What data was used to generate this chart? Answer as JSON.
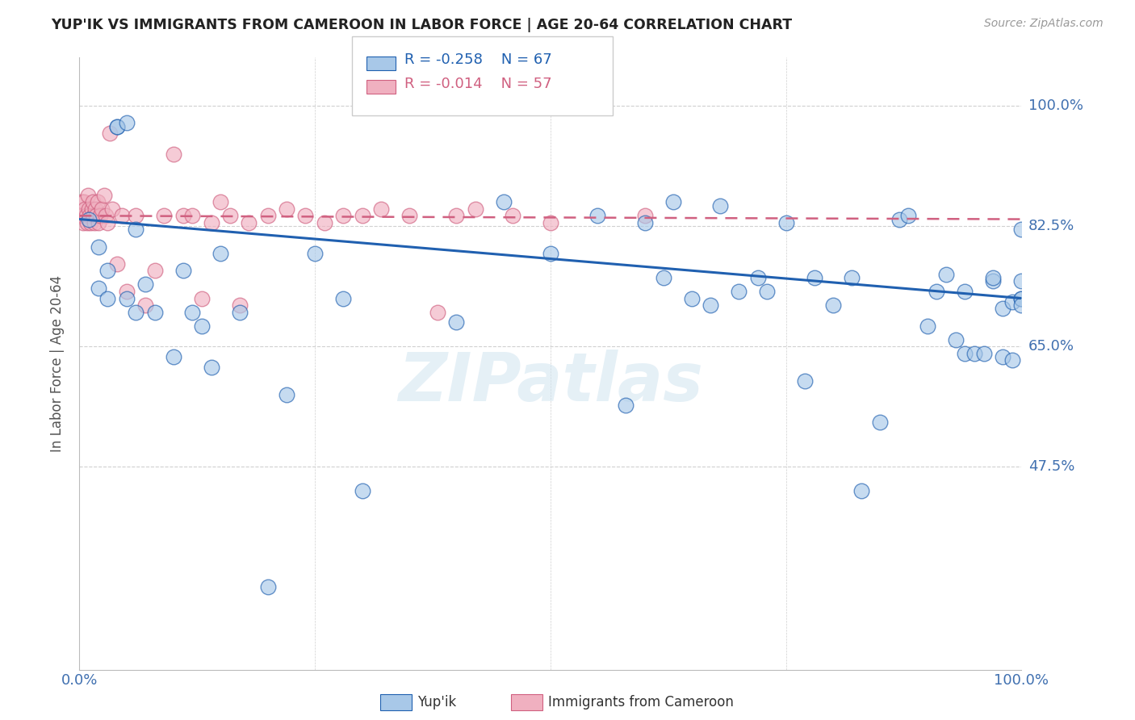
{
  "title": "YUP'IK VS IMMIGRANTS FROM CAMEROON IN LABOR FORCE | AGE 20-64 CORRELATION CHART",
  "source": "Source: ZipAtlas.com",
  "ylabel": "In Labor Force | Age 20-64",
  "ytick_labels": [
    "100.0%",
    "82.5%",
    "65.0%",
    "47.5%"
  ],
  "ytick_values": [
    1.0,
    0.825,
    0.65,
    0.475
  ],
  "xlim": [
    0.0,
    1.0
  ],
  "ylim": [
    0.18,
    1.07
  ],
  "legend_r1": "R = -0.258",
  "legend_n1": "N = 67",
  "legend_r2": "R = -0.014",
  "legend_n2": "N = 57",
  "blue_color": "#a8c8e8",
  "pink_color": "#f0b0c0",
  "line_blue": "#2060b0",
  "line_pink": "#d06080",
  "watermark": "ZIPatlas",
  "blue_scatter_x": [
    0.01,
    0.02,
    0.02,
    0.03,
    0.03,
    0.04,
    0.04,
    0.05,
    0.05,
    0.06,
    0.06,
    0.07,
    0.08,
    0.1,
    0.11,
    0.12,
    0.13,
    0.14,
    0.15,
    0.17,
    0.2,
    0.22,
    0.25,
    0.28,
    0.3,
    0.4,
    0.45,
    0.5,
    0.55,
    0.58,
    0.6,
    0.62,
    0.63,
    0.65,
    0.67,
    0.68,
    0.7,
    0.72,
    0.73,
    0.75,
    0.77,
    0.78,
    0.8,
    0.82,
    0.83,
    0.85,
    0.87,
    0.88,
    0.9,
    0.91,
    0.92,
    0.93,
    0.94,
    0.94,
    0.95,
    0.96,
    0.97,
    0.97,
    0.98,
    0.98,
    0.99,
    0.99,
    1.0,
    1.0,
    1.0,
    1.0,
    1.0
  ],
  "blue_scatter_y": [
    0.835,
    0.795,
    0.735,
    0.76,
    0.72,
    0.97,
    0.97,
    0.975,
    0.72,
    0.82,
    0.7,
    0.74,
    0.7,
    0.635,
    0.76,
    0.7,
    0.68,
    0.62,
    0.785,
    0.7,
    0.3,
    0.58,
    0.785,
    0.72,
    0.44,
    0.685,
    0.86,
    0.785,
    0.84,
    0.565,
    0.83,
    0.75,
    0.86,
    0.72,
    0.71,
    0.855,
    0.73,
    0.75,
    0.73,
    0.83,
    0.6,
    0.75,
    0.71,
    0.75,
    0.44,
    0.54,
    0.835,
    0.84,
    0.68,
    0.73,
    0.755,
    0.66,
    0.64,
    0.73,
    0.64,
    0.64,
    0.745,
    0.75,
    0.705,
    0.635,
    0.715,
    0.63,
    0.745,
    0.82,
    0.72,
    0.72,
    0.71
  ],
  "pink_scatter_x": [
    0.001,
    0.002,
    0.003,
    0.004,
    0.005,
    0.006,
    0.007,
    0.008,
    0.009,
    0.01,
    0.011,
    0.012,
    0.013,
    0.014,
    0.015,
    0.016,
    0.017,
    0.018,
    0.019,
    0.02,
    0.022,
    0.024,
    0.026,
    0.028,
    0.03,
    0.032,
    0.035,
    0.04,
    0.045,
    0.05,
    0.06,
    0.07,
    0.08,
    0.09,
    0.1,
    0.11,
    0.12,
    0.13,
    0.14,
    0.15,
    0.16,
    0.17,
    0.18,
    0.2,
    0.22,
    0.24,
    0.26,
    0.28,
    0.3,
    0.32,
    0.35,
    0.38,
    0.4,
    0.42,
    0.46,
    0.5,
    0.6
  ],
  "pink_scatter_y": [
    0.84,
    0.86,
    0.84,
    0.83,
    0.86,
    0.85,
    0.84,
    0.83,
    0.87,
    0.85,
    0.84,
    0.83,
    0.85,
    0.86,
    0.84,
    0.83,
    0.85,
    0.84,
    0.86,
    0.83,
    0.84,
    0.85,
    0.87,
    0.84,
    0.83,
    0.96,
    0.85,
    0.77,
    0.84,
    0.73,
    0.84,
    0.71,
    0.76,
    0.84,
    0.93,
    0.84,
    0.84,
    0.72,
    0.83,
    0.86,
    0.84,
    0.71,
    0.83,
    0.84,
    0.85,
    0.84,
    0.83,
    0.84,
    0.84,
    0.85,
    0.84,
    0.7,
    0.84,
    0.85,
    0.84,
    0.83,
    0.84
  ],
  "blue_line_x": [
    0.0,
    1.0
  ],
  "blue_line_y": [
    0.835,
    0.72
  ],
  "pink_line_x": [
    0.0,
    1.0
  ],
  "pink_line_y": [
    0.84,
    0.835
  ]
}
